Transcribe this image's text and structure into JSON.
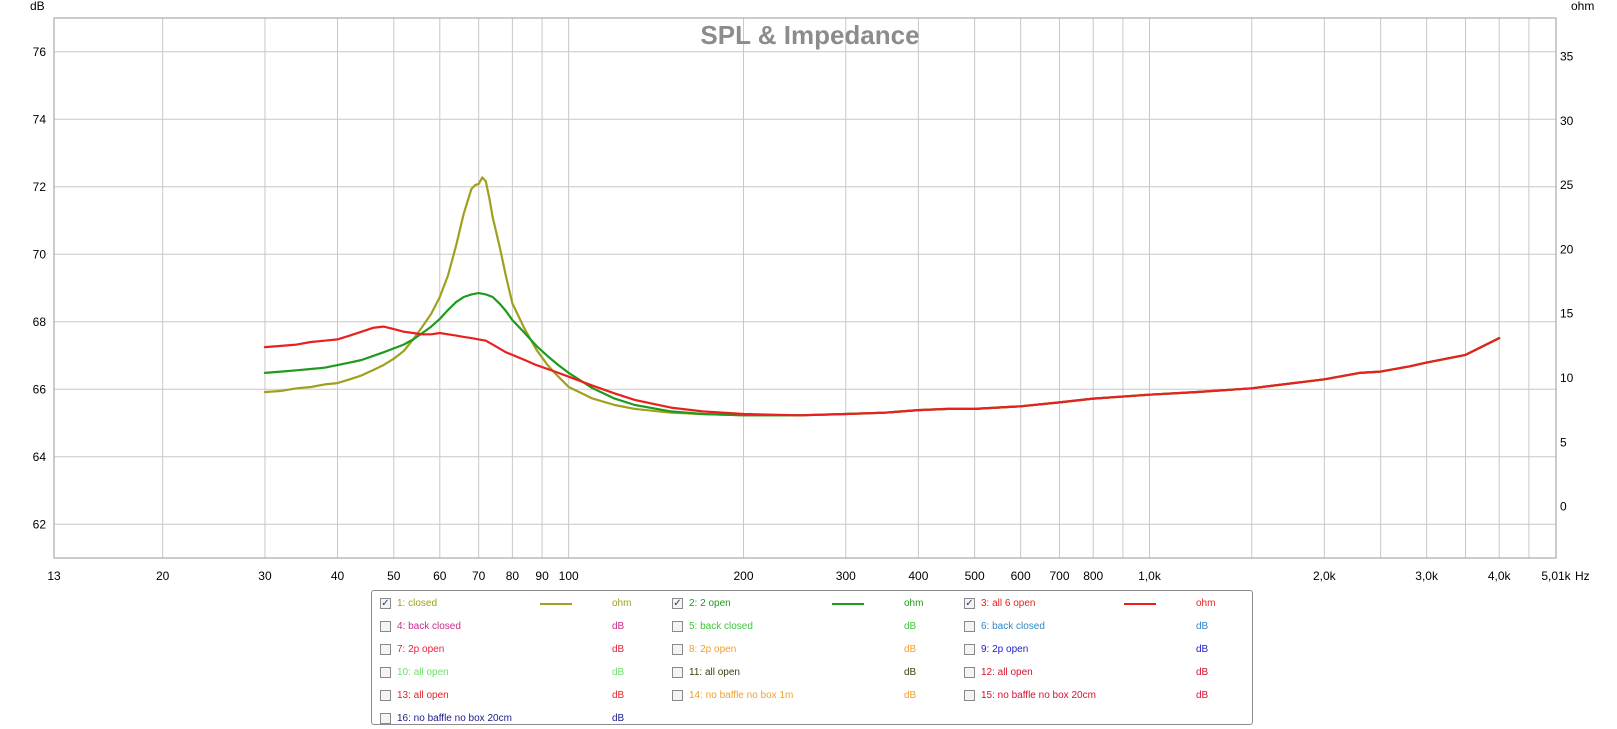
{
  "chart_data": {
    "type": "line",
    "title": "SPL & Impedance",
    "xlabel": "",
    "ylabel": "dB",
    "y2label": "ohm",
    "x_unit": "Hz",
    "x_scale": "log",
    "xlim": [
      13,
      5010
    ],
    "ylim": [
      61,
      77
    ],
    "y2lim": [
      -4,
      38
    ],
    "grid": true,
    "x_ticks": [
      {
        "value": 13,
        "label": "13"
      },
      {
        "value": 20,
        "label": "20"
      },
      {
        "value": 30,
        "label": "30"
      },
      {
        "value": 40,
        "label": "40"
      },
      {
        "value": 50,
        "label": "50"
      },
      {
        "value": 60,
        "label": "60"
      },
      {
        "value": 70,
        "label": "70"
      },
      {
        "value": 80,
        "label": "80"
      },
      {
        "value": 90,
        "label": "90"
      },
      {
        "value": 100,
        "label": "100"
      },
      {
        "value": 200,
        "label": "200"
      },
      {
        "value": 300,
        "label": "300"
      },
      {
        "value": 400,
        "label": "400"
      },
      {
        "value": 500,
        "label": "500"
      },
      {
        "value": 600,
        "label": "600"
      },
      {
        "value": 700,
        "label": "700"
      },
      {
        "value": 800,
        "label": "800"
      },
      {
        "value": 1000,
        "label": "1,0k"
      },
      {
        "value": 2000,
        "label": "2,0k"
      },
      {
        "value": 3000,
        "label": "3,0k"
      },
      {
        "value": 4000,
        "label": "4,0k"
      },
      {
        "value": 5010,
        "label": "5,01k"
      }
    ],
    "x_minor_gridlines": [
      900,
      1500,
      2500,
      3500,
      4500
    ],
    "y_ticks": [
      62,
      64,
      66,
      68,
      70,
      72,
      74,
      76
    ],
    "y2_ticks": [
      0,
      5,
      10,
      15,
      20,
      25,
      30,
      35
    ],
    "series": [
      {
        "name": "1: closed",
        "axis": "ohm",
        "color": "#a0a01e",
        "x": [
          30,
          32,
          34,
          36,
          38,
          40,
          42,
          44,
          46,
          48,
          50,
          52,
          54,
          56,
          58,
          60,
          62,
          64,
          66,
          68,
          69,
          70,
          71,
          72,
          73,
          74,
          76,
          78,
          80,
          84,
          88,
          92,
          96,
          100,
          110,
          120,
          130,
          150,
          170,
          200,
          250,
          300,
          350,
          400,
          450,
          500,
          600,
          700,
          800,
          1000,
          1200,
          1500,
          2000,
          2300,
          2500,
          2800,
          3000,
          3500,
          4000
        ],
        "y": [
          8.9,
          9.0,
          9.2,
          9.3,
          9.5,
          9.6,
          9.9,
          10.2,
          10.6,
          11.0,
          11.5,
          12.1,
          13.0,
          14.0,
          15.0,
          16.3,
          18.0,
          20.3,
          22.8,
          24.7,
          25.0,
          25.1,
          25.6,
          25.3,
          24.0,
          22.5,
          20.3,
          17.9,
          15.8,
          13.8,
          12.2,
          11.0,
          10.1,
          9.3,
          8.4,
          7.9,
          7.6,
          7.3,
          7.2,
          7.1,
          7.1,
          7.2,
          7.3,
          7.5,
          7.6,
          7.6,
          7.8,
          8.1,
          8.4,
          8.7,
          8.9,
          9.2,
          9.9,
          10.4,
          10.5,
          10.9,
          11.2,
          11.8,
          13.1
        ]
      },
      {
        "name": "2: 2 open",
        "axis": "ohm",
        "color": "#1e9a1e",
        "x": [
          30,
          32,
          34,
          36,
          38,
          40,
          42,
          44,
          46,
          48,
          50,
          52,
          54,
          56,
          58,
          60,
          62,
          64,
          66,
          68,
          70,
          72,
          74,
          76,
          78,
          80,
          84,
          88,
          92,
          96,
          100,
          110,
          120,
          130,
          150,
          170,
          200,
          250,
          300,
          350,
          400,
          450,
          500,
          600,
          700,
          800,
          1000,
          1200,
          1500,
          2000,
          2300,
          2500,
          2800,
          3000,
          3500,
          4000
        ],
        "y": [
          10.4,
          10.5,
          10.6,
          10.7,
          10.8,
          11.0,
          11.2,
          11.4,
          11.7,
          12.0,
          12.3,
          12.6,
          13.0,
          13.5,
          14.0,
          14.6,
          15.3,
          15.9,
          16.3,
          16.5,
          16.6,
          16.5,
          16.3,
          15.8,
          15.2,
          14.5,
          13.5,
          12.5,
          11.7,
          11.0,
          10.4,
          9.2,
          8.4,
          7.9,
          7.4,
          7.2,
          7.1,
          7.1,
          7.2,
          7.3,
          7.5,
          7.6,
          7.6,
          7.8,
          8.1,
          8.4,
          8.7,
          8.9,
          9.2,
          9.9,
          10.4,
          10.5,
          10.9,
          11.2,
          11.8,
          13.1
        ]
      },
      {
        "name": "3: all 6 open",
        "axis": "ohm",
        "color": "#e82020",
        "x": [
          30,
          32,
          34,
          36,
          38,
          40,
          42,
          44,
          46,
          48,
          50,
          52,
          54,
          56,
          58,
          60,
          62,
          64,
          66,
          68,
          70,
          72,
          74,
          76,
          78,
          80,
          84,
          88,
          92,
          96,
          100,
          110,
          120,
          130,
          150,
          170,
          200,
          250,
          300,
          350,
          400,
          450,
          500,
          600,
          700,
          800,
          1000,
          1200,
          1500,
          2000,
          2300,
          2500,
          2800,
          3000,
          3500,
          4000
        ],
        "y": [
          12.4,
          12.5,
          12.6,
          12.8,
          12.9,
          13.0,
          13.3,
          13.6,
          13.9,
          14.0,
          13.8,
          13.6,
          13.5,
          13.4,
          13.4,
          13.5,
          13.4,
          13.3,
          13.2,
          13.1,
          13.0,
          12.9,
          12.6,
          12.3,
          12.0,
          11.8,
          11.4,
          11.0,
          10.7,
          10.4,
          10.1,
          9.4,
          8.8,
          8.3,
          7.7,
          7.4,
          7.2,
          7.1,
          7.2,
          7.3,
          7.5,
          7.6,
          7.6,
          7.8,
          8.1,
          8.4,
          8.7,
          8.9,
          9.2,
          9.9,
          10.4,
          10.5,
          10.9,
          11.2,
          11.8,
          13.1
        ]
      }
    ],
    "legend": {
      "position": "bottom",
      "items": [
        {
          "label": "1: closed",
          "unit": "ohm",
          "checked": true,
          "color": "#a0a01e",
          "swatch": true
        },
        {
          "label": "2: 2 open",
          "unit": "ohm",
          "checked": true,
          "color": "#1e9a1e",
          "swatch": true
        },
        {
          "label": "3: all 6 open",
          "unit": "ohm",
          "checked": true,
          "color": "#e82020",
          "swatch": true
        },
        {
          "label": "4: back closed",
          "unit": "dB",
          "checked": false,
          "color": "#cc2a8a"
        },
        {
          "label": "5: back closed",
          "unit": "dB",
          "checked": false,
          "color": "#3cc83c"
        },
        {
          "label": "6: back closed",
          "unit": "dB",
          "checked": false,
          "color": "#2f88c8"
        },
        {
          "label": "7: 2p open",
          "unit": "dB",
          "checked": false,
          "color": "#e8203a"
        },
        {
          "label": "8: 2p open",
          "unit": "dB",
          "checked": false,
          "color": "#f0a030"
        },
        {
          "label": "9: 2p open",
          "unit": "dB",
          "checked": false,
          "color": "#2020d0"
        },
        {
          "label": "10: all open",
          "unit": "dB",
          "checked": false,
          "color": "#6ee06e"
        },
        {
          "label": "11: all open",
          "unit": "dB",
          "checked": false,
          "color": "#404010"
        },
        {
          "label": "12: all open",
          "unit": "dB",
          "checked": false,
          "color": "#d81030"
        },
        {
          "label": "13: all open",
          "unit": "dB",
          "checked": false,
          "color": "#e82020"
        },
        {
          "label": "14: no baffle no box 1m",
          "unit": "dB",
          "checked": false,
          "color": "#f0a030"
        },
        {
          "label": "15: no baffle no box 20cm",
          "unit": "dB",
          "checked": false,
          "color": "#d81030"
        },
        {
          "label": "16: no baffle no box 20cm",
          "unit": "dB",
          "checked": false,
          "color": "#1a1a90"
        }
      ]
    }
  }
}
